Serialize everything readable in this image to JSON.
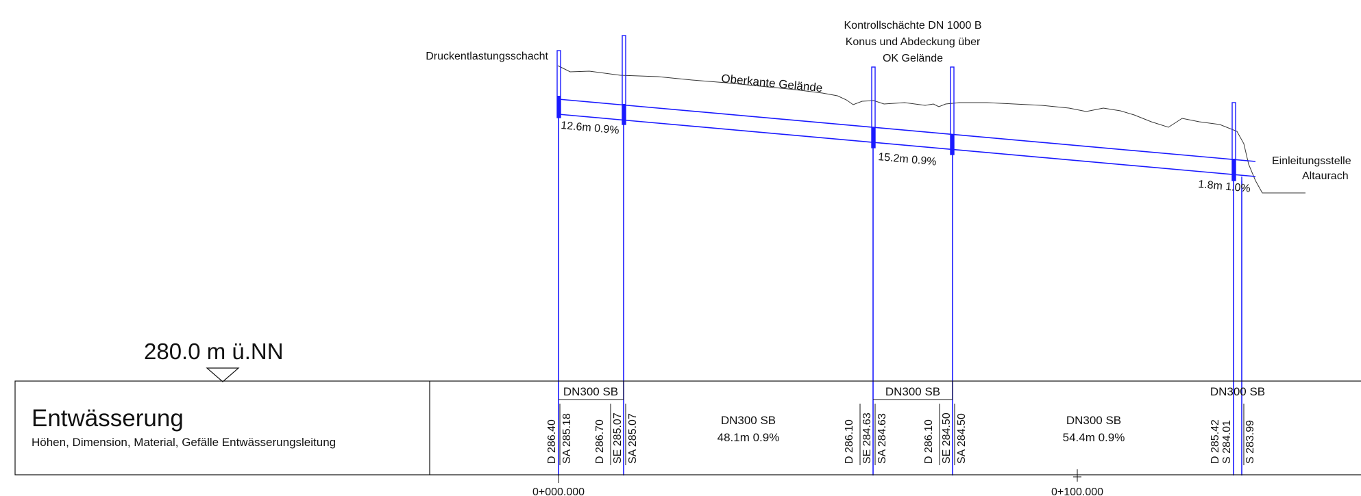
{
  "profile": {
    "labels": {
      "pressure_shaft": "Druckentlastungsschacht",
      "control_shafts": [
        "Kontrollschächte DN 1000 B",
        "Konus und Abdeckung über",
        "OK Gelände"
      ],
      "ground_line": "Oberkante Gelände",
      "outlet": [
        "Einleitungsstelle",
        "Altaurach"
      ]
    },
    "segment_labels": [
      "12.6m 0.9%",
      "15.2m 0.9%",
      "1.8m 1.0%"
    ]
  },
  "reference_level": "280.0 m ü.NN",
  "band": {
    "title": "Entwässerung",
    "subtitle": "Höhen, Dimension, Material, Gefälle Entwässerungsleitung",
    "short_pipe_labels": [
      "DN300 SB",
      "DN300 SB",
      "DN300 SB"
    ],
    "segments": [
      {
        "name": "DN300 SB",
        "detail": "48.1m 0.9%"
      },
      {
        "name": "DN300 SB",
        "detail": "54.4m 0.9%"
      }
    ],
    "vertical_values": {
      "s1_d": "D 286.40",
      "s1_sa": "SA 285.18",
      "s2_d": "D 286.70",
      "s2_se": "SE 285.07",
      "s2_sa": "SA 285.07",
      "s3_d": "D 286.10",
      "s3_se": "SE 284.63",
      "s3_sa": "SA 284.63",
      "s4_d": "D 286.10",
      "s4_se": "SE 284.50",
      "s4_sa": "SA 284.50",
      "s5_d": "D 285.42",
      "s5_s": "S 284.01",
      "s6_s": "S 283.99"
    }
  },
  "stations": [
    "0+000.000",
    "0+100.000"
  ]
}
